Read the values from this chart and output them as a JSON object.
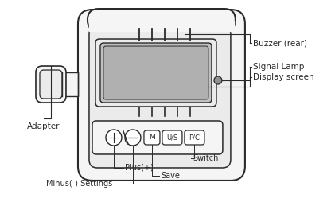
{
  "bg_color": "#ffffff",
  "line_color": "#2a2a2a",
  "fill_body": "#f5f5f5",
  "fill_inner": "#ebebeb",
  "fill_screen": "#c0c0c0",
  "fill_screen2": "#b0b0b0",
  "signal_lamp_color": "#909090",
  "labels": {
    "buzzer": "Buzzer (rear)",
    "signal_lamp": "Signal Lamp",
    "display_screen": "Display screen",
    "adapter": "Adapter",
    "plus": "Plus(+)",
    "minus_settings": "Minus(-) Settings",
    "save": "Save",
    "switch": "Switch"
  },
  "figsize": [
    4.16,
    2.49
  ],
  "dpi": 100
}
